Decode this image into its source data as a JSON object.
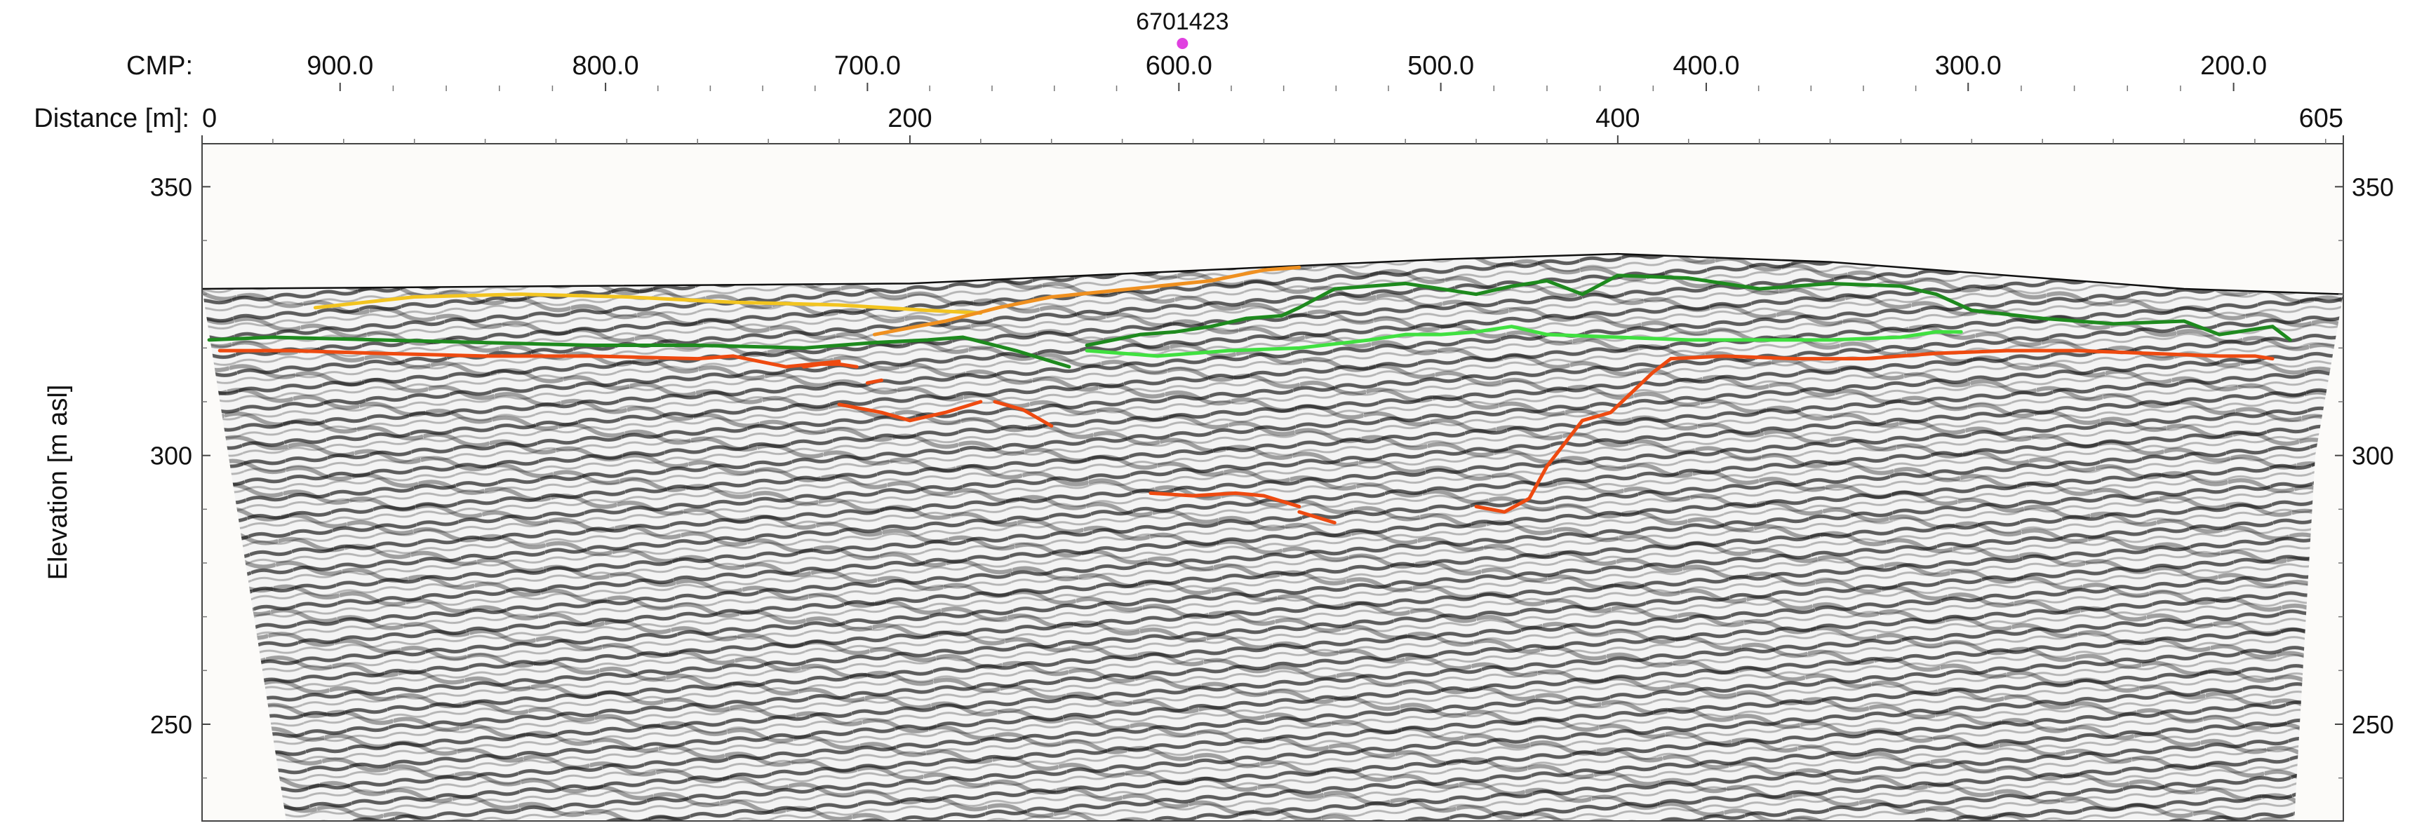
{
  "chart_data": {
    "type": "scatter",
    "title": "",
    "well_marker": {
      "label": "6701423",
      "distance_m": 277,
      "color": "#e040e0"
    },
    "cmp_axis": {
      "label": "CMP:",
      "tick_labels": [
        "900.0",
        "800.0",
        "700.0",
        "600.0",
        "500.0",
        "400.0",
        "300.0",
        "200.0"
      ],
      "tick_values": [
        900,
        800,
        700,
        600,
        500,
        400,
        300,
        200
      ],
      "tick_distance_m": [
        39,
        114,
        188,
        276,
        350,
        425,
        499,
        574
      ]
    },
    "x_axis": {
      "label": "Distance [m]:",
      "range": [
        0,
        605
      ],
      "tick_labels": [
        "0",
        "200",
        "400",
        "605"
      ],
      "tick_values": [
        0,
        200,
        400,
        605
      ]
    },
    "y_axis": {
      "label": "Elevation [m asl]",
      "range": [
        232,
        358
      ],
      "tick_labels": [
        "350",
        "300",
        "250"
      ],
      "tick_values": [
        350,
        300,
        250
      ]
    },
    "surface": {
      "color": "#111111",
      "x": [
        0,
        100,
        200,
        300,
        350,
        400,
        460,
        520,
        560,
        605
      ],
      "y": [
        331,
        331.5,
        332,
        335,
        336.5,
        337.5,
        336,
        333,
        331,
        330
      ]
    },
    "series": [
      {
        "color": "#f2c420",
        "x": [
          32,
          60,
          90,
          120,
          150,
          180,
          205,
          220
        ],
        "y": [
          327.5,
          329.5,
          330,
          329.5,
          328.5,
          328,
          327,
          326.5
        ]
      },
      {
        "color": "#ef9020",
        "x": [
          190,
          210,
          225,
          240,
          255,
          270,
          285,
          300,
          310
        ],
        "y": [
          322.5,
          325,
          327.5,
          329.5,
          330.5,
          331.5,
          332.5,
          334.5,
          335
        ]
      },
      {
        "color": "#1e8a1e",
        "x": [
          2,
          20,
          50,
          80,
          110,
          140,
          170,
          190,
          205,
          215,
          230,
          245
        ],
        "y": [
          321.5,
          322,
          321.5,
          321,
          320.5,
          320.5,
          320,
          321,
          321.5,
          322,
          319.5,
          316.5
        ]
      },
      {
        "color": "#1e8a1e",
        "x": [
          250,
          265,
          275,
          285,
          295,
          305,
          310,
          320,
          340,
          360,
          370,
          380,
          390,
          400,
          420,
          440,
          460,
          480,
          490,
          500,
          520,
          540,
          560,
          570,
          585,
          590
        ],
        "y": [
          320.5,
          322.5,
          323,
          324,
          325.5,
          326,
          327.5,
          331,
          332,
          330,
          331.5,
          332.5,
          330,
          333.5,
          333,
          331,
          332,
          331.5,
          330,
          327,
          325.5,
          324.5,
          325,
          322.5,
          324,
          321.5
        ]
      },
      {
        "color": "#40e040",
        "x": [
          250,
          270,
          290,
          310,
          330,
          340,
          350,
          360,
          370,
          380,
          400,
          420,
          440,
          460,
          480,
          490,
          497
        ],
        "y": [
          319.5,
          318.5,
          319.5,
          320,
          321.5,
          322.5,
          322.5,
          323,
          324,
          322.5,
          322,
          321.5,
          321.5,
          321.5,
          322,
          323,
          323
        ]
      },
      {
        "color": "#ee4a10",
        "x": [
          5,
          25,
          50,
          80,
          110,
          140,
          150,
          165,
          180
        ],
        "y": [
          319.5,
          319.5,
          319,
          318.5,
          318.5,
          318,
          318.5,
          316.5,
          317.5
        ]
      },
      {
        "color": "#ee4a10",
        "x": [
          170,
          175,
          180,
          185
        ],
        "y": [
          316.5,
          317,
          317,
          316.5
        ]
      },
      {
        "color": "#ee4a10",
        "x": [
          188,
          192
        ],
        "y": [
          313.5,
          314
        ]
      },
      {
        "color": "#ee4a10",
        "x": [
          180,
          192,
          200,
          210,
          220
        ],
        "y": [
          309.5,
          308,
          306.5,
          308,
          310
        ]
      },
      {
        "color": "#ee4a10",
        "x": [
          224,
          232,
          240
        ],
        "y": [
          310,
          308.5,
          305.5
        ]
      },
      {
        "color": "#ee4a10",
        "x": [
          268,
          280,
          292,
          300,
          310
        ],
        "y": [
          293,
          292.5,
          293,
          292.5,
          290.5
        ]
      },
      {
        "color": "#ee4a10",
        "x": [
          310,
          320
        ],
        "y": [
          289.5,
          287.5
        ]
      },
      {
        "color": "#ee4a10",
        "x": [
          360,
          368,
          375,
          380,
          390,
          398,
          410,
          415
        ],
        "y": [
          290.5,
          289.5,
          292,
          298,
          306.5,
          308,
          315.5,
          318
        ]
      },
      {
        "color": "#ee4a10",
        "x": [
          415,
          430,
          450,
          470,
          490,
          510,
          530,
          550,
          570,
          580,
          585
        ],
        "y": [
          318,
          318.5,
          318,
          318,
          319,
          319.5,
          319.5,
          319,
          318.5,
          318.5,
          318
        ]
      }
    ]
  }
}
